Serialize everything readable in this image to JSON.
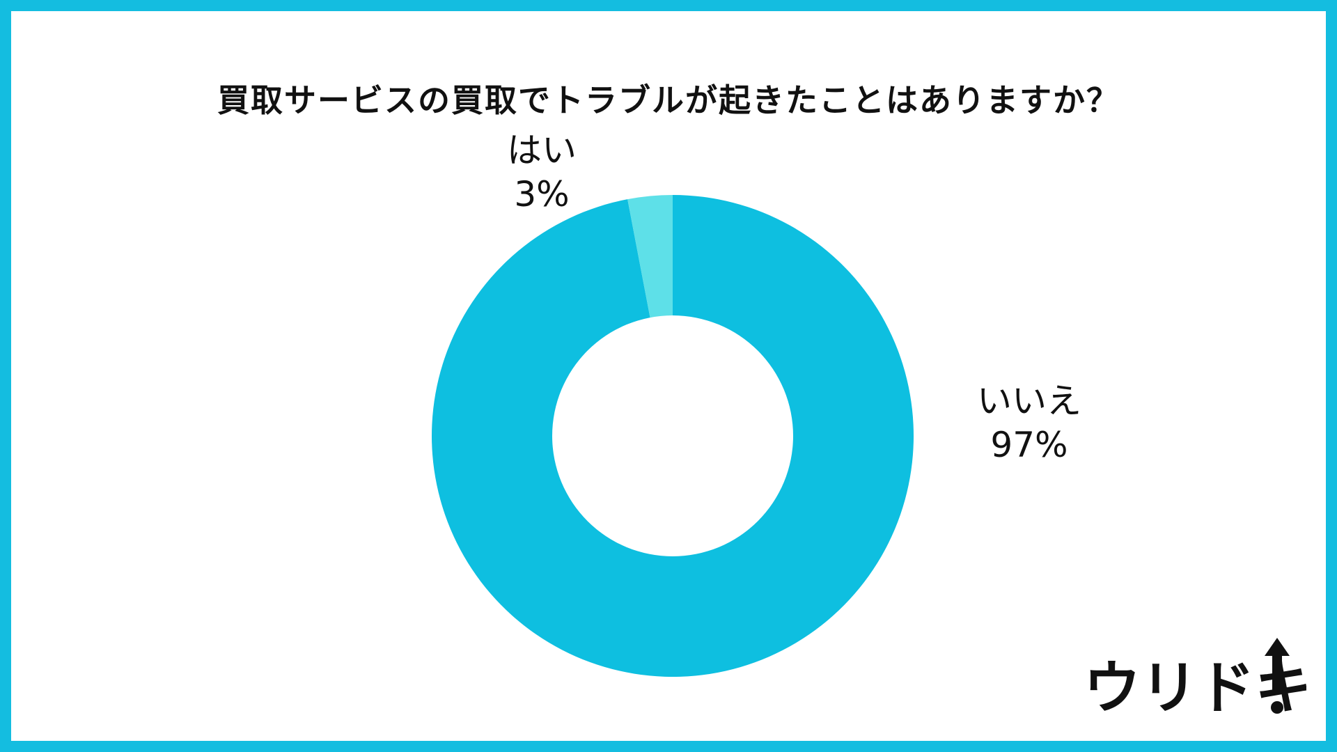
{
  "chart_data": {
    "type": "pie",
    "title": "買取サービスの買取でトラブルが起きたことはありますか？",
    "slices": [
      {
        "label": "いいえ",
        "value": 97,
        "display": "97%",
        "color": "#0ebfe0"
      },
      {
        "label": "はい",
        "value": 3,
        "display": "3%",
        "color": "#5ee0e8"
      }
    ],
    "donut": true,
    "legend": "labels-outside"
  },
  "brand": {
    "logo_text": "ウリドキ",
    "accent_color": "#14bde0"
  }
}
